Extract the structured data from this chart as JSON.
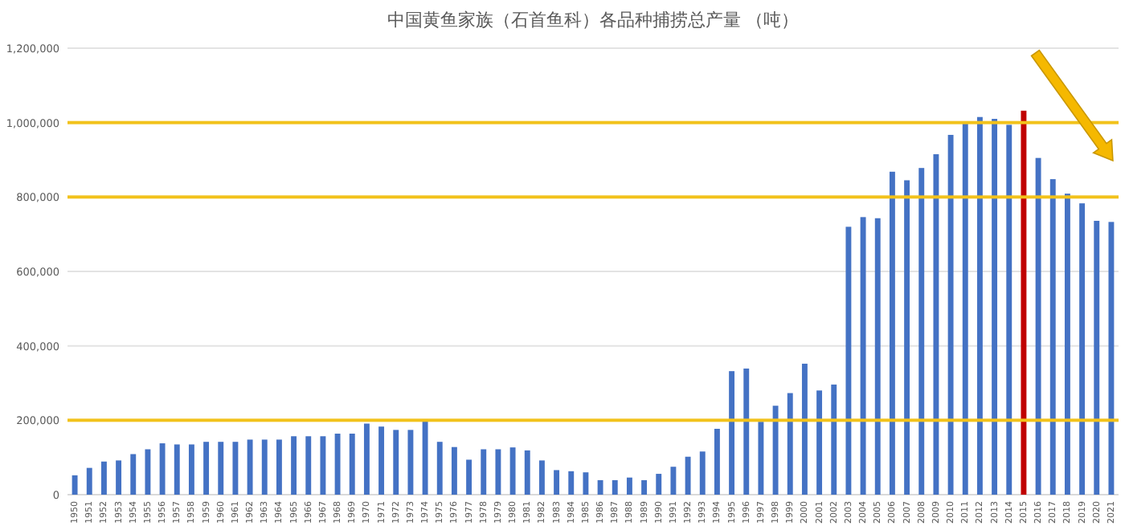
{
  "chart_data": {
    "type": "bar",
    "title": "中国黄鱼家族（石首鱼科）各品种捕捞总产量 （吨）",
    "categories": [
      "1950",
      "1951",
      "1952",
      "1953",
      "1954",
      "1955",
      "1956",
      "1957",
      "1958",
      "1959",
      "1960",
      "1961",
      "1962",
      "1963",
      "1964",
      "1965",
      "1966",
      "1967",
      "1968",
      "1969",
      "1970",
      "1971",
      "1972",
      "1973",
      "1974",
      "1975",
      "1976",
      "1977",
      "1978",
      "1979",
      "1980",
      "1981",
      "1982",
      "1983",
      "1984",
      "1985",
      "1986",
      "1987",
      "1988",
      "1989",
      "1990",
      "1991",
      "1992",
      "1993",
      "1994",
      "1995",
      "1996",
      "1997",
      "1998",
      "1999",
      "2000",
      "2001",
      "2002",
      "2003",
      "2004",
      "2005",
      "2006",
      "2007",
      "2008",
      "2009",
      "2010",
      "2011",
      "2012",
      "2013",
      "2014",
      "2015",
      "2016",
      "2017",
      "2018",
      "2019",
      "2020",
      "2021"
    ],
    "values": [
      52000,
      72000,
      89000,
      92000,
      109000,
      122000,
      138000,
      135000,
      135000,
      142000,
      142000,
      142000,
      148000,
      148000,
      148000,
      157000,
      157000,
      157000,
      164000,
      164000,
      191000,
      183000,
      174000,
      174000,
      198000,
      142000,
      128000,
      94000,
      122000,
      122000,
      127000,
      119000,
      92000,
      66000,
      63000,
      60000,
      39000,
      39000,
      46000,
      39000,
      56000,
      75000,
      102000,
      116000,
      177000,
      332000,
      339000,
      196000,
      239000,
      273000,
      352000,
      280000,
      296000,
      720000,
      746000,
      743000,
      868000,
      845000,
      878000,
      915000,
      967000,
      999000,
      1015000,
      1010000,
      994000,
      1032000,
      905000,
      848000,
      809000,
      783000,
      736000,
      733000
    ],
    "colors": [
      "#4472c4",
      "#4472c4",
      "#4472c4",
      "#4472c4",
      "#4472c4",
      "#4472c4",
      "#4472c4",
      "#4472c4",
      "#4472c4",
      "#4472c4",
      "#4472c4",
      "#4472c4",
      "#4472c4",
      "#4472c4",
      "#4472c4",
      "#4472c4",
      "#4472c4",
      "#4472c4",
      "#4472c4",
      "#4472c4",
      "#4472c4",
      "#4472c4",
      "#4472c4",
      "#4472c4",
      "#4472c4",
      "#4472c4",
      "#4472c4",
      "#4472c4",
      "#4472c4",
      "#4472c4",
      "#4472c4",
      "#4472c4",
      "#4472c4",
      "#4472c4",
      "#4472c4",
      "#4472c4",
      "#4472c4",
      "#4472c4",
      "#4472c4",
      "#4472c4",
      "#4472c4",
      "#4472c4",
      "#4472c4",
      "#4472c4",
      "#4472c4",
      "#4472c4",
      "#4472c4",
      "#4472c4",
      "#4472c4",
      "#4472c4",
      "#4472c4",
      "#4472c4",
      "#4472c4",
      "#4472c4",
      "#4472c4",
      "#4472c4",
      "#4472c4",
      "#4472c4",
      "#4472c4",
      "#4472c4",
      "#4472c4",
      "#4472c4",
      "#4472c4",
      "#4472c4",
      "#4472c4",
      "#c00000",
      "#4472c4",
      "#4472c4",
      "#4472c4",
      "#4472c4",
      "#4472c4",
      "#4472c4"
    ],
    "ylim": [
      0,
      1200000
    ],
    "yticks": [
      0,
      {
        "value": 200000,
        "label": "200,000"
      },
      {
        "value": 400000,
        "label": "400,000"
      },
      {
        "value": 600000,
        "label": "600,000"
      },
      {
        "value": 800000,
        "label": "800,000"
      },
      {
        "value": 1000000,
        "label": "1,000,000"
      },
      {
        "value": 1200000,
        "label": "1,200,000"
      }
    ],
    "grid": "y",
    "ref_lines": [
      {
        "axis": "y",
        "value": 200000,
        "color": "#f2c21b"
      },
      {
        "axis": "y",
        "value": 800000,
        "color": "#f2c21b"
      },
      {
        "axis": "y",
        "value": 1000000,
        "color": "#f2c21b"
      }
    ]
  }
}
